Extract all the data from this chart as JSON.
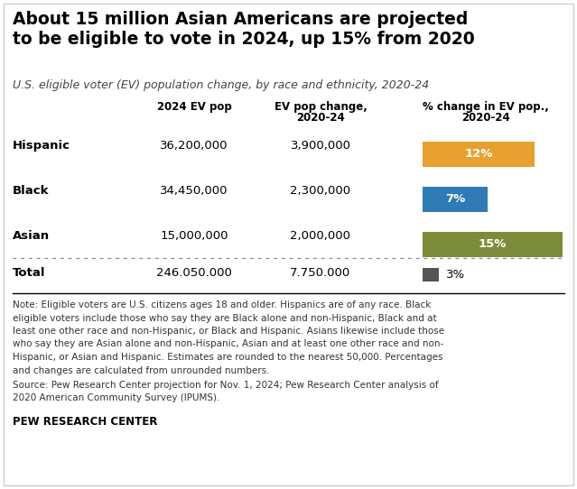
{
  "title": "About 15 million Asian Americans are projected\nto be eligible to vote in 2024, up 15% from 2020",
  "subtitle": "U.S. eligible voter (EV) population change, by race and ethnicity, 2020-24",
  "col_headers_line1": [
    "",
    "2024 EV pop",
    "EV pop change,",
    "% change in EV pop.,"
  ],
  "col_headers_line2": [
    "",
    "",
    "2020-24",
    "2020-24"
  ],
  "rows": [
    {
      "label": "Hispanic",
      "ev_pop": "36,200,000",
      "ev_change": "3,900,000",
      "pct_change": "12%",
      "bar_color": "#E8A030",
      "pct_val": 12
    },
    {
      "label": "Black",
      "ev_pop": "34,450,000",
      "ev_change": "2,300,000",
      "pct_change": "7%",
      "bar_color": "#2E7BB5",
      "pct_val": 7
    },
    {
      "label": "Asian",
      "ev_pop": "15,000,000",
      "ev_change": "2,000,000",
      "pct_change": "15%",
      "bar_color": "#7D8C3A",
      "pct_val": 15
    }
  ],
  "total_row": {
    "label": "Total",
    "ev_pop": "246.050.000",
    "ev_change": "7.750.000",
    "pct_change": "3%",
    "square_color": "#555555"
  },
  "note_line1": "Note: Eligible voters are U.S. citizens ages 18 and older. Hispanics are of any race. Black",
  "note_line2": "eligible voters include those who say they are Black alone and non-Hispanic, Black and at",
  "note_line3": "least one other race and non-Hispanic, or Black and Hispanic. Asians likewise include those",
  "note_line4": "who say they are Asian alone and non-Hispanic, Asian and at least one other race and non-",
  "note_line5": "Hispanic, or Asian and Hispanic. Estimates are rounded to the nearest 50,000. Percentages",
  "note_line6": "and changes are calculated from unrounded numbers.",
  "source_line1": "Source: Pew Research Center projection for Nov. 1, 2024; Pew Research Center analysis of",
  "source_line2": "2020 American Community Survey (IPUMS).",
  "branding": "PEW RESEARCH CENTER",
  "background_color": "#ffffff",
  "title_fontsize": 13.5,
  "subtitle_fontsize": 9.0,
  "header_fontsize": 8.5,
  "label_fontsize": 9.5,
  "note_fontsize": 7.5,
  "branding_fontsize": 8.5,
  "max_bar_pct": 15
}
